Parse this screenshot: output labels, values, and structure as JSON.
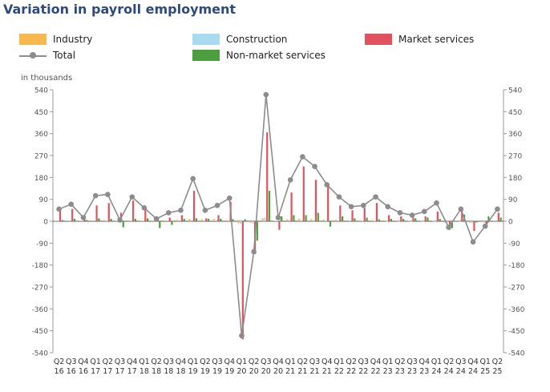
{
  "title": "Variation in payroll employment",
  "legend": {
    "industry": "Industry",
    "construction": "Construction",
    "market_services": "Market services",
    "total": "Total",
    "non_market_services": "Non-market services"
  },
  "unit_label": "in thousands",
  "colors": {
    "industry": "#f7b84e",
    "construction": "#a8daf0",
    "market_services": "#e0525f",
    "non_market_services": "#4c9e3f",
    "total": "#8c8c8c",
    "title": "#2e4a7d"
  },
  "chart_data": {
    "type": "bar",
    "title": "Variation in payroll employment",
    "ylabel": "in thousands",
    "ylim": [
      -540,
      540
    ],
    "yticks": [
      540,
      450,
      360,
      270,
      180,
      90,
      0,
      -90,
      -180,
      -270,
      -360,
      -450,
      -540
    ],
    "grid": false,
    "legend_position": "top",
    "categories": [
      [
        "Q2",
        "16"
      ],
      [
        "Q3",
        "16"
      ],
      [
        "Q4",
        "16"
      ],
      [
        "Q1",
        "17"
      ],
      [
        "Q2",
        "17"
      ],
      [
        "Q3",
        "17"
      ],
      [
        "Q4",
        "17"
      ],
      [
        "Q1",
        "18"
      ],
      [
        "Q2",
        "18"
      ],
      [
        "Q3",
        "18"
      ],
      [
        "Q4",
        "18"
      ],
      [
        "Q1",
        "19"
      ],
      [
        "Q2",
        "19"
      ],
      [
        "Q3",
        "19"
      ],
      [
        "Q4",
        "19"
      ],
      [
        "Q1",
        "20"
      ],
      [
        "Q2",
        "20"
      ],
      [
        "Q3",
        "20"
      ],
      [
        "Q4",
        "20"
      ],
      [
        "Q1",
        "21"
      ],
      [
        "Q2",
        "21"
      ],
      [
        "Q3",
        "21"
      ],
      [
        "Q4",
        "21"
      ],
      [
        "Q1",
        "22"
      ],
      [
        "Q2",
        "22"
      ],
      [
        "Q3",
        "22"
      ],
      [
        "Q4",
        "22"
      ],
      [
        "Q1",
        "23"
      ],
      [
        "Q2",
        "23"
      ],
      [
        "Q3",
        "23"
      ],
      [
        "Q4",
        "23"
      ],
      [
        "Q1",
        "24"
      ],
      [
        "Q2",
        "24"
      ],
      [
        "Q3",
        "24"
      ],
      [
        "Q4",
        "24"
      ],
      [
        "Q1",
        "25"
      ],
      [
        "Q2",
        "25"
      ]
    ],
    "series": [
      {
        "name": "Industry",
        "key": "industry",
        "type": "bar",
        "values": [
          2,
          3,
          2,
          3,
          5,
          2,
          4,
          3,
          3,
          4,
          6,
          10,
          8,
          9,
          5,
          -8,
          -6,
          12,
          2,
          8,
          10,
          9,
          7,
          6,
          5,
          4,
          5,
          4,
          3,
          2,
          2,
          2,
          -6,
          3,
          -6,
          -3,
          2
        ]
      },
      {
        "name": "Construction",
        "key": "construction",
        "type": "bar",
        "values": [
          3,
          4,
          2,
          4,
          3,
          2,
          3,
          2,
          3,
          3,
          4,
          6,
          5,
          5,
          4,
          -10,
          -8,
          15,
          2,
          6,
          5,
          5,
          4,
          3,
          3,
          2,
          2,
          1,
          0,
          -1,
          -1,
          -1,
          -6,
          -2,
          -8,
          -6,
          -5
        ]
      },
      {
        "name": "Market services",
        "key": "market_services",
        "type": "bar",
        "values": [
          45,
          50,
          10,
          65,
          75,
          35,
          85,
          45,
          5,
          15,
          25,
          125,
          12,
          25,
          80,
          -485,
          -135,
          365,
          -35,
          118,
          225,
          170,
          145,
          65,
          45,
          55,
          75,
          25,
          20,
          15,
          20,
          40,
          -35,
          45,
          -40,
          -20,
          35
        ]
      },
      {
        "name": "Non-market services",
        "key": "non_market_services",
        "type": "bar",
        "values": [
          5,
          10,
          5,
          12,
          10,
          -25,
          10,
          12,
          -28,
          -15,
          10,
          12,
          10,
          10,
          8,
          8,
          -80,
          125,
          20,
          25,
          25,
          35,
          -22,
          20,
          12,
          15,
          8,
          10,
          10,
          12,
          15,
          10,
          -28,
          28,
          -5,
          20,
          15
        ]
      },
      {
        "name": "Total",
        "key": "total",
        "type": "line",
        "values": [
          50,
          70,
          15,
          105,
          110,
          5,
          100,
          55,
          10,
          35,
          45,
          175,
          45,
          65,
          95,
          -470,
          -125,
          520,
          15,
          170,
          265,
          225,
          150,
          100,
          60,
          65,
          100,
          60,
          35,
          25,
          40,
          75,
          -25,
          50,
          -85,
          -20,
          50
        ]
      }
    ]
  }
}
